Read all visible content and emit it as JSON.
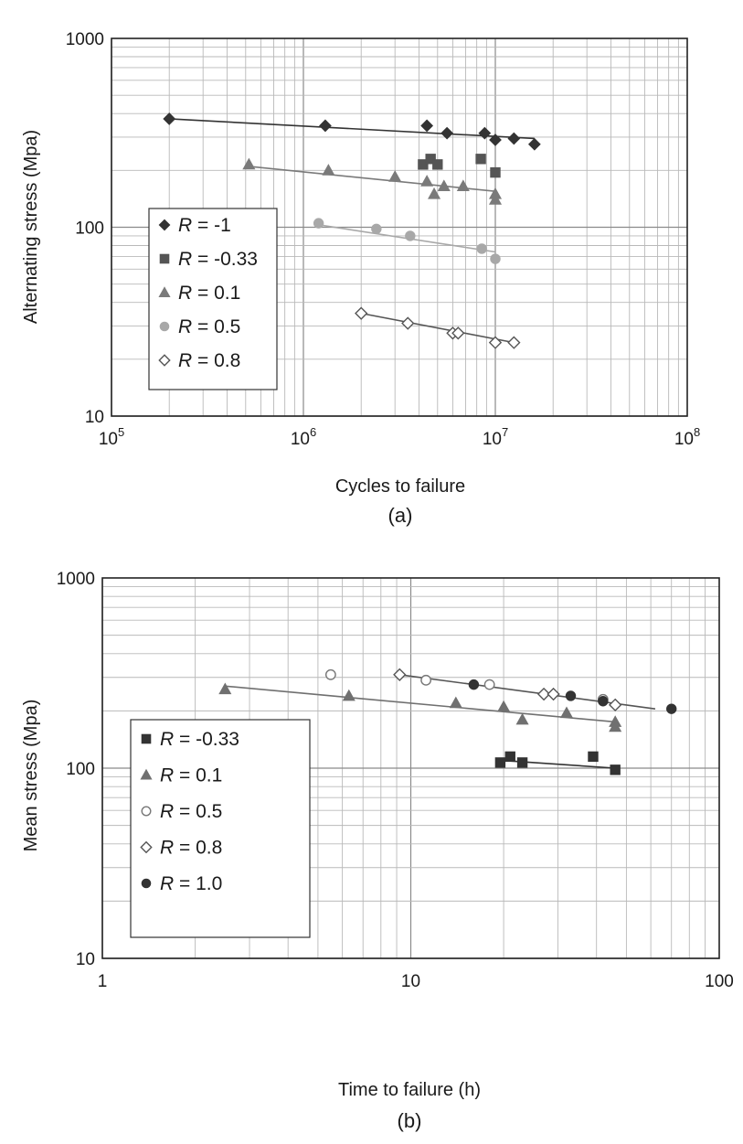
{
  "chart_data": [
    {
      "type": "scatter",
      "panel_label": "(a)",
      "title": "",
      "xlabel": "Cycles to failure",
      "ylabel": "Alternating stress (Mpa)",
      "xscale": "log",
      "yscale": "log",
      "xlim": [
        100000,
        100000000
      ],
      "ylim": [
        10,
        1000
      ],
      "x_tick_labels": [
        {
          "value": 100000,
          "base": "10",
          "exp": "5"
        },
        {
          "value": 1000000,
          "base": "10",
          "exp": "6"
        },
        {
          "value": 10000000,
          "base": "10",
          "exp": "7"
        },
        {
          "value": 100000000,
          "base": "10",
          "exp": "8"
        }
      ],
      "y_tick_labels": [
        {
          "value": 10,
          "label": "10"
        },
        {
          "value": 100,
          "label": "100"
        },
        {
          "value": 1000,
          "label": "1000"
        }
      ],
      "grid": true,
      "legend_position": "left-middle",
      "series": [
        {
          "name_var": "R",
          "name_value": " = -1",
          "marker": "diamond",
          "filled": true,
          "color": "#333333",
          "points": [
            [
              200000,
              375
            ],
            [
              1300000,
              345
            ],
            [
              4400000,
              345
            ],
            [
              5600000,
              315
            ],
            [
              8800000,
              315
            ],
            [
              10000000,
              290
            ],
            [
              12500000,
              295
            ],
            [
              16000000,
              275
            ]
          ],
          "trendline": [
            [
              200000,
              375
            ],
            [
              16000000,
              295
            ]
          ]
        },
        {
          "name_var": "R",
          "name_value": " = -0.33",
          "marker": "square",
          "filled": true,
          "color": "#555555",
          "points": [
            [
              4200000,
              215
            ],
            [
              4600000,
              230
            ],
            [
              5000000,
              215
            ],
            [
              8400000,
              230
            ],
            [
              10000000,
              195
            ]
          ],
          "trendline": null
        },
        {
          "name_var": "R",
          "name_value": " = 0.1",
          "marker": "triangle",
          "filled": true,
          "color": "#7a7a7a",
          "points": [
            [
              520000,
              215
            ],
            [
              1350000,
              200
            ],
            [
              3000000,
              185
            ],
            [
              4400000,
              175
            ],
            [
              4800000,
              150
            ],
            [
              5400000,
              165
            ],
            [
              6800000,
              165
            ],
            [
              10000000,
              150
            ],
            [
              10000000,
              140
            ]
          ],
          "trendline": [
            [
              520000,
              210
            ],
            [
              10000000,
              155
            ]
          ]
        },
        {
          "name_var": "R",
          "name_value": " = 0.5",
          "marker": "circle",
          "filled": true,
          "color": "#a8a8a8",
          "points": [
            [
              1200000,
              105
            ],
            [
              2400000,
              98
            ],
            [
              3600000,
              90
            ],
            [
              8500000,
              77
            ],
            [
              10000000,
              68
            ]
          ],
          "trendline": [
            [
              1200000,
              103
            ],
            [
              10000000,
              74
            ]
          ]
        },
        {
          "name_var": "R",
          "name_value": " = 0.8",
          "marker": "diamond",
          "filled": false,
          "color": "#555555",
          "points": [
            [
              2000000,
              35
            ],
            [
              3500000,
              31
            ],
            [
              6000000,
              27.5
            ],
            [
              6400000,
              27.5
            ],
            [
              10000000,
              24.5
            ],
            [
              12500000,
              24.5
            ]
          ],
          "trendline": [
            [
              2000000,
              35
            ],
            [
              12500000,
              24.5
            ]
          ]
        }
      ]
    },
    {
      "type": "scatter",
      "panel_label": "(b)",
      "title": "",
      "xlabel": "Time to failure (h)",
      "ylabel": "Mean stress (Mpa)",
      "xscale": "log",
      "yscale": "log",
      "xlim": [
        1,
        100
      ],
      "ylim": [
        10,
        1000
      ],
      "x_tick_labels": [
        {
          "value": 1,
          "label": "1"
        },
        {
          "value": 10,
          "label": "10"
        },
        {
          "value": 100,
          "label": "100"
        }
      ],
      "y_tick_labels": [
        {
          "value": 10,
          "label": "10"
        },
        {
          "value": 100,
          "label": "100"
        },
        {
          "value": 1000,
          "label": "1000"
        }
      ],
      "grid": true,
      "legend_position": "bottom-left",
      "series": [
        {
          "name_var": "R",
          "name_value": " = -0.33",
          "marker": "square",
          "filled": true,
          "color": "#333333",
          "points": [
            [
              19.5,
              107
            ],
            [
              21,
              115
            ],
            [
              23,
              107
            ],
            [
              39,
              115
            ],
            [
              46,
              98
            ]
          ],
          "trendline": [
            [
              19.5,
              110
            ],
            [
              46,
              100
            ]
          ]
        },
        {
          "name_var": "R",
          "name_value": " = 0.1",
          "marker": "triangle",
          "filled": true,
          "color": "#707070",
          "points": [
            [
              2.5,
              260
            ],
            [
              6.3,
              240
            ],
            [
              14,
              220
            ],
            [
              20,
              210
            ],
            [
              23,
              180
            ],
            [
              32,
              195
            ],
            [
              46,
              175
            ],
            [
              46,
              165
            ]
          ],
          "trendline": [
            [
              2.5,
              270
            ],
            [
              46,
              175
            ]
          ]
        },
        {
          "name_var": "R",
          "name_value": " = 0.5",
          "marker": "circle",
          "filled": false,
          "color": "#777777",
          "points": [
            [
              5.5,
              310
            ],
            [
              11.2,
              290
            ],
            [
              18,
              275
            ],
            [
              42,
              230
            ]
          ],
          "trendline": null
        },
        {
          "name_var": "R",
          "name_value": " = 0.8",
          "marker": "diamond",
          "filled": false,
          "color": "#555555",
          "points": [
            [
              9.2,
              310
            ],
            [
              27,
              245
            ],
            [
              29,
              245
            ],
            [
              46,
              215
            ]
          ],
          "trendline": [
            [
              9.2,
              310
            ],
            [
              62,
              205
            ]
          ]
        },
        {
          "name_var": "R",
          "name_value": " = 1.0",
          "marker": "circle",
          "filled": true,
          "color": "#333333",
          "points": [
            [
              16,
              275
            ],
            [
              33,
              240
            ],
            [
              42,
              225
            ],
            [
              70,
              205
            ]
          ],
          "trendline": null
        }
      ]
    }
  ]
}
